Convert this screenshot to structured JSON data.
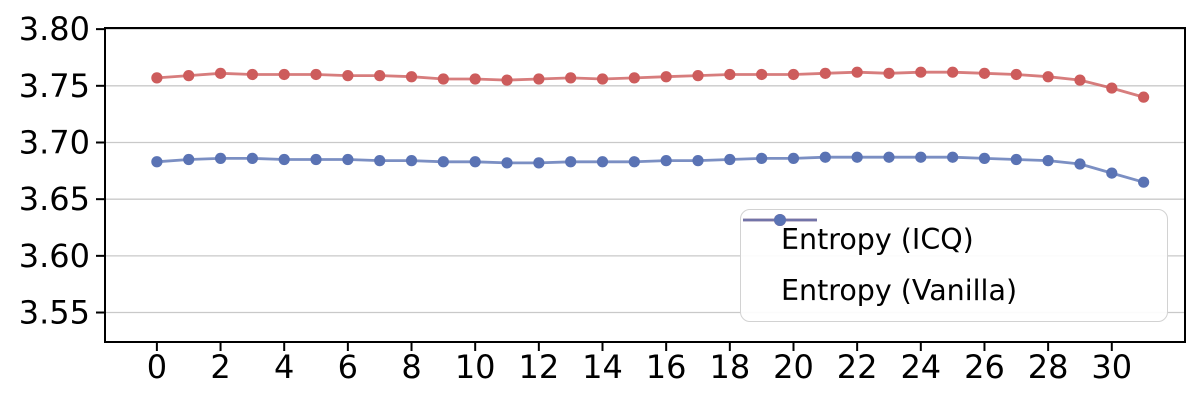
{
  "figure": {
    "background": "#ffffff",
    "spine_color": "#000000",
    "grid_color": "#c9c9c9",
    "tick_label_color": "#000000"
  },
  "chart_data": {
    "type": "line",
    "title": "",
    "xlabel": "",
    "ylabel": "",
    "grid": "horizontal",
    "legend_position": "lower right",
    "xlim": [
      -1.63,
      32.3
    ],
    "ylim": [
      3.524,
      3.801
    ],
    "xticks": [
      0,
      2,
      4,
      6,
      8,
      10,
      12,
      14,
      16,
      18,
      20,
      22,
      24,
      26,
      28,
      30
    ],
    "yticks": [
      3.55,
      3.6,
      3.65,
      3.7,
      3.75,
      3.8
    ],
    "x": [
      0,
      1,
      2,
      3,
      4,
      5,
      6,
      7,
      8,
      9,
      10,
      11,
      12,
      13,
      14,
      15,
      16,
      17,
      18,
      19,
      20,
      21,
      22,
      23,
      24,
      25,
      26,
      27,
      28,
      29,
      30,
      31
    ],
    "series": [
      {
        "name": "Entropy (ICQ)",
        "color": "#cd5c5c",
        "values": [
          3.757,
          3.759,
          3.761,
          3.76,
          3.76,
          3.76,
          3.759,
          3.759,
          3.758,
          3.756,
          3.756,
          3.755,
          3.756,
          3.757,
          3.756,
          3.757,
          3.758,
          3.759,
          3.76,
          3.76,
          3.76,
          3.761,
          3.762,
          3.761,
          3.762,
          3.762,
          3.761,
          3.76,
          3.758,
          3.755,
          3.748,
          3.74
        ]
      },
      {
        "name": "Entropy (Vanilla)",
        "color": "#5a73b4",
        "values": [
          3.683,
          3.685,
          3.686,
          3.686,
          3.685,
          3.685,
          3.685,
          3.684,
          3.684,
          3.683,
          3.683,
          3.682,
          3.682,
          3.683,
          3.683,
          3.683,
          3.684,
          3.684,
          3.685,
          3.686,
          3.686,
          3.687,
          3.687,
          3.687,
          3.687,
          3.687,
          3.686,
          3.685,
          3.684,
          3.681,
          3.673,
          3.665
        ]
      }
    ]
  }
}
